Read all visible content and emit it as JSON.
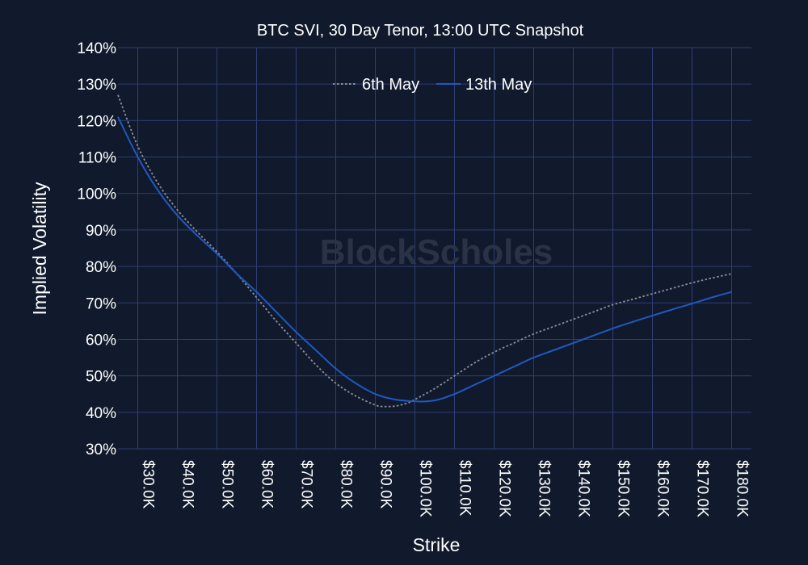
{
  "chart_data": {
    "type": "line",
    "title": "BTC SVI, 30 Day Tenor, 13:00 UTC Snapshot",
    "xlabel": "Strike",
    "ylabel": "Implied Volatility",
    "xlim": [
      25000,
      185000
    ],
    "ylim": [
      30,
      140
    ],
    "y_ticks": [
      30,
      40,
      50,
      60,
      70,
      80,
      90,
      100,
      110,
      120,
      130,
      140
    ],
    "y_tick_labels": [
      "30%",
      "40%",
      "50%",
      "60%",
      "70%",
      "80%",
      "90%",
      "100%",
      "110%",
      "120%",
      "130%",
      "140%"
    ],
    "x_ticks": [
      30000,
      40000,
      50000,
      60000,
      70000,
      80000,
      90000,
      100000,
      110000,
      120000,
      130000,
      140000,
      150000,
      160000,
      170000,
      180000
    ],
    "x_tick_labels": [
      "$30.0K",
      "$40.0K",
      "$50.0K",
      "$60.0K",
      "$70.0K",
      "$80.0K",
      "$90.0K",
      "$100.0K",
      "$110.0K",
      "$120.0K",
      "$130.0K",
      "$140.0K",
      "$150.0K",
      "$160.0K",
      "$170.0K",
      "$180.0K"
    ],
    "grid": true,
    "legend_position": "top-center",
    "watermark": "BlockScholes",
    "series": [
      {
        "name": "6th May",
        "color": "#8c8f98",
        "dash": "dotted",
        "x": [
          25000,
          30000,
          35000,
          40000,
          45000,
          50000,
          55000,
          60000,
          65000,
          70000,
          75000,
          80000,
          85000,
          90000,
          92000,
          95000,
          98000,
          100000,
          105000,
          110000,
          115000,
          120000,
          125000,
          130000,
          135000,
          140000,
          145000,
          150000,
          155000,
          160000,
          165000,
          170000,
          175000,
          180000
        ],
        "y": [
          127,
          113,
          103,
          95.5,
          89.5,
          84,
          78,
          71.5,
          65,
          59,
          53,
          48,
          44.5,
          42,
          41.6,
          41.7,
          42.5,
          43.5,
          46.5,
          50,
          53.5,
          56.5,
          59,
          61.5,
          63.5,
          65.5,
          67.5,
          69.5,
          71,
          72.5,
          74,
          75.5,
          76.8,
          78
        ]
      },
      {
        "name": "13th May",
        "color": "#1f58c4",
        "dash": "solid",
        "x": [
          25000,
          30000,
          35000,
          40000,
          45000,
          50000,
          55000,
          60000,
          65000,
          70000,
          75000,
          80000,
          85000,
          90000,
          95000,
          100000,
          103000,
          106000,
          110000,
          115000,
          120000,
          125000,
          130000,
          135000,
          140000,
          145000,
          150000,
          155000,
          160000,
          165000,
          170000,
          175000,
          180000
        ],
        "y": [
          121,
          110,
          101,
          94,
          88.5,
          83.5,
          78,
          73,
          67.5,
          62,
          57,
          52,
          48,
          45,
          43.5,
          43,
          43,
          43.5,
          45,
          47.5,
          50,
          52.5,
          55,
          57,
          59,
          61,
          63,
          64.8,
          66.5,
          68.2,
          69.8,
          71.5,
          73
        ]
      }
    ]
  }
}
